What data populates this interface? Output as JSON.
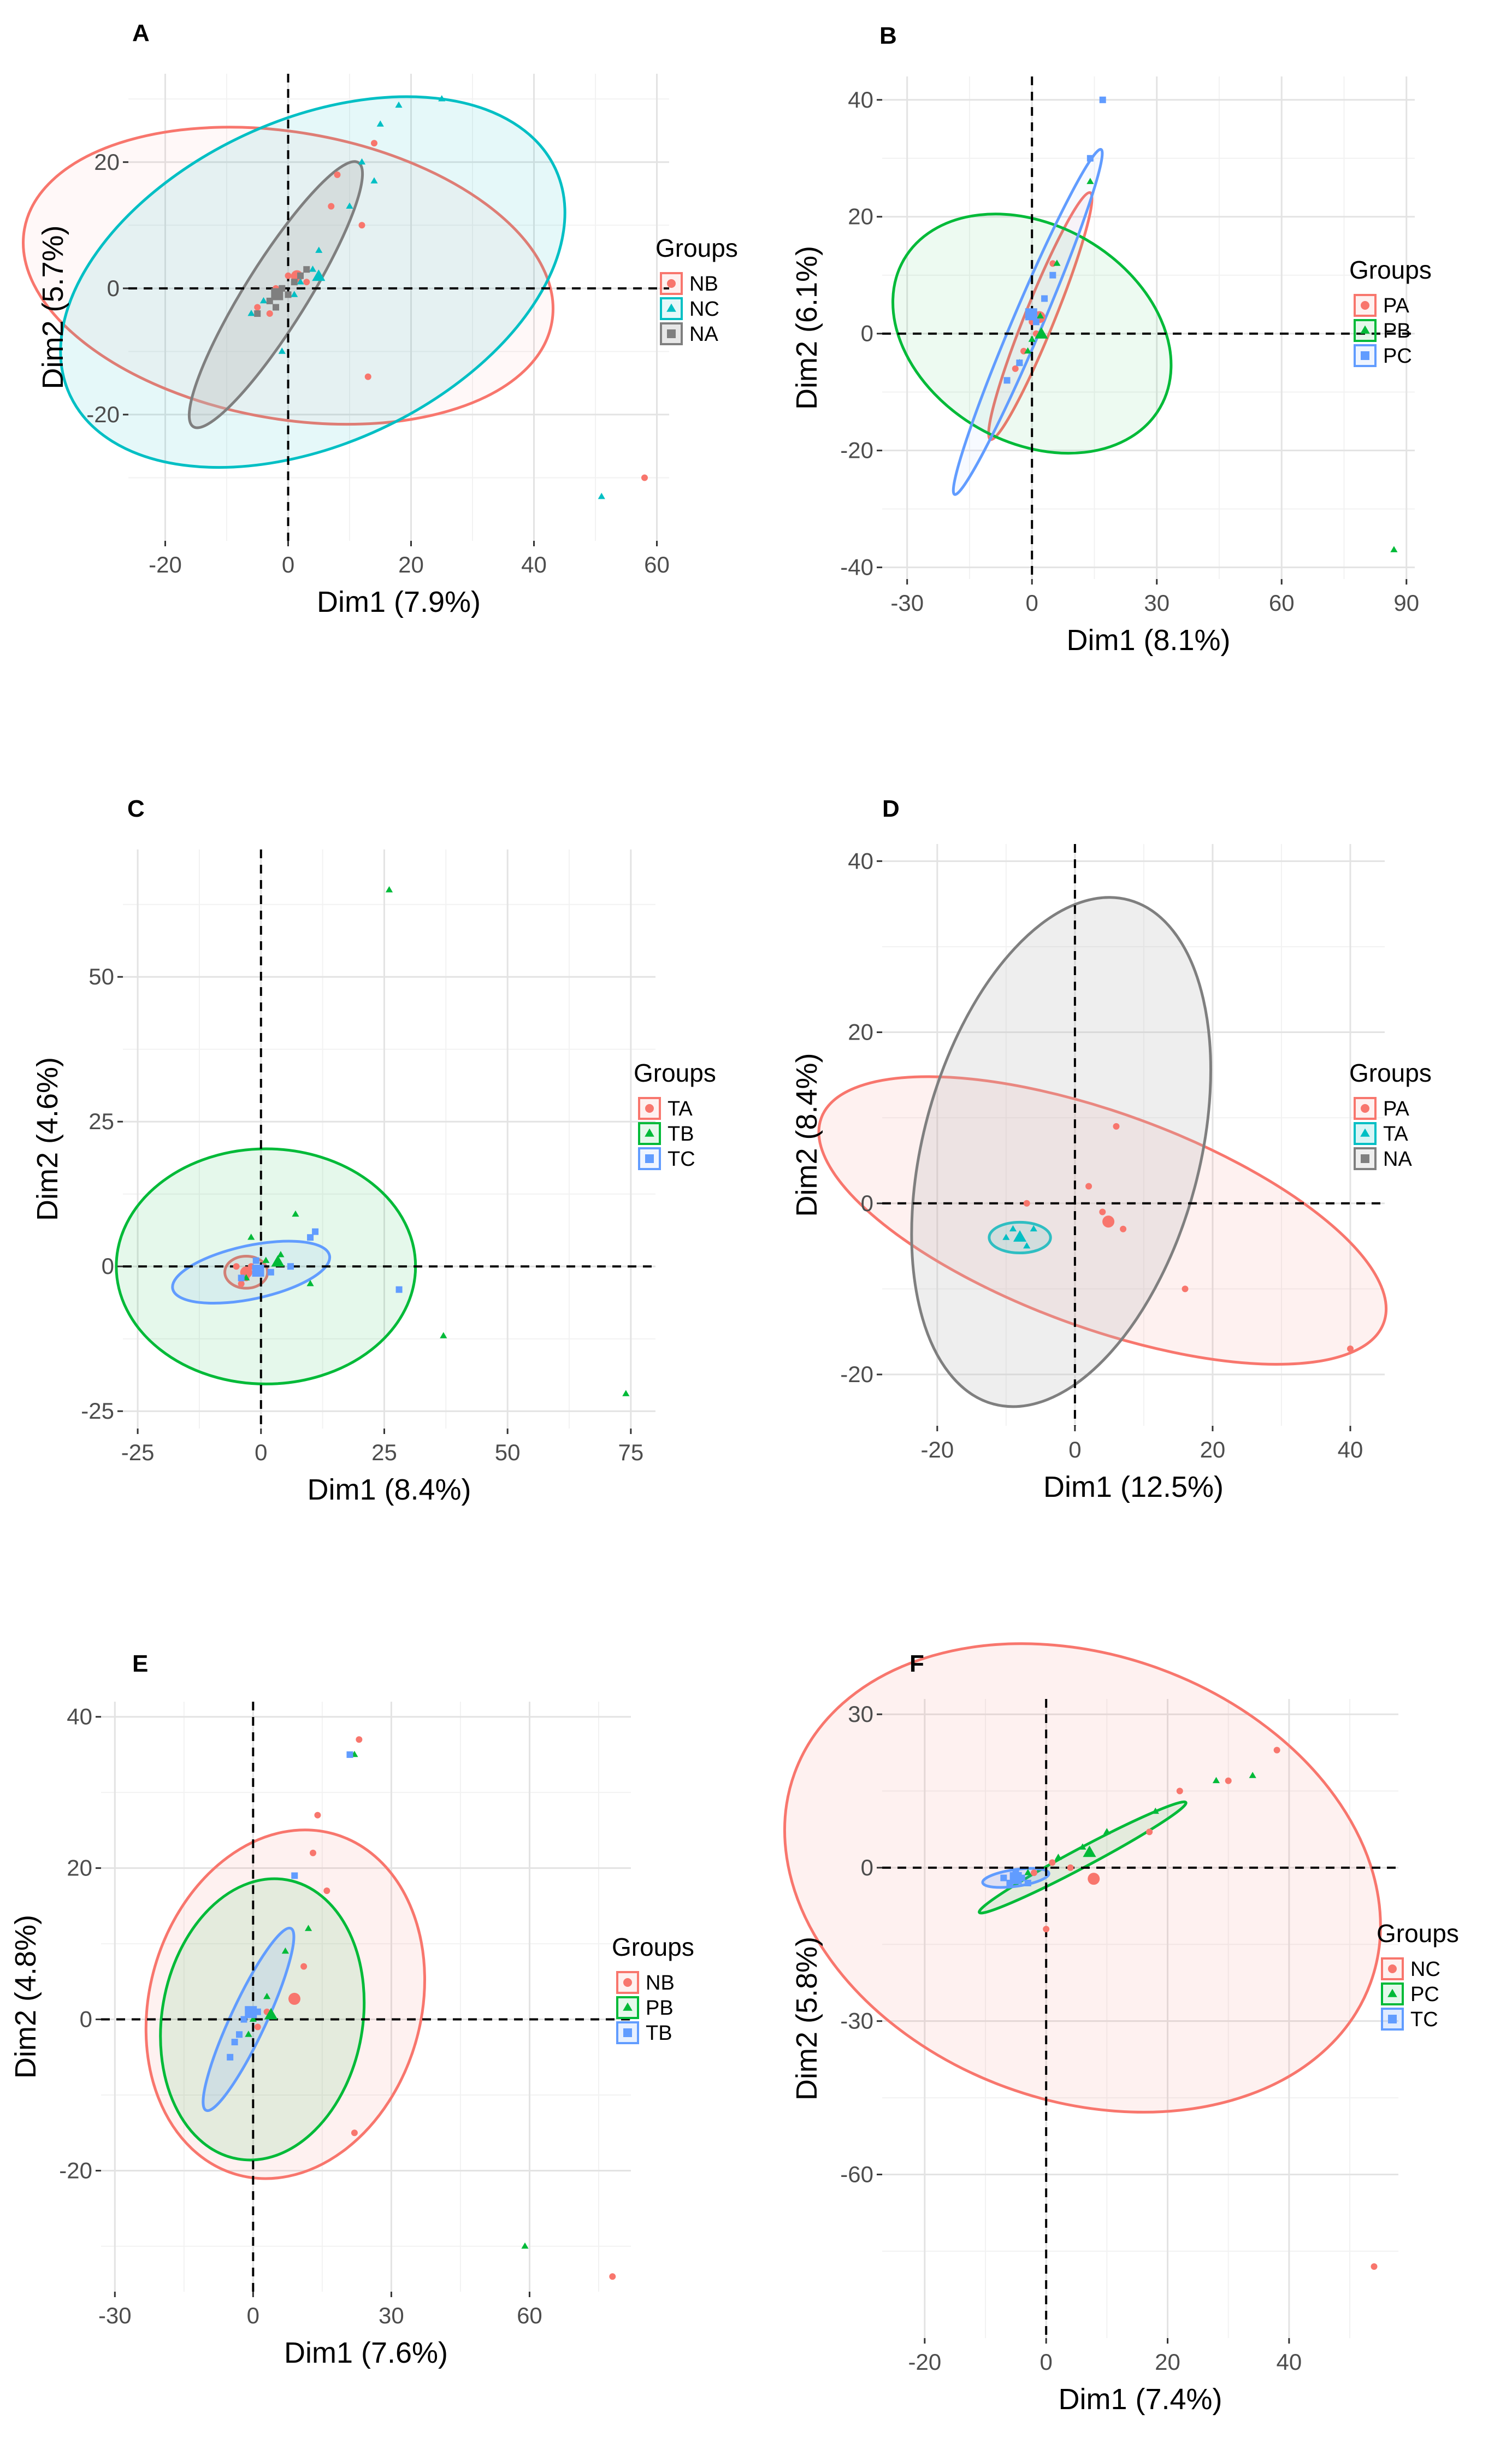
{
  "chart_data": [
    {
      "type": "scatter",
      "panel_label": "A",
      "xlabel": "Dim1 (7.9%)",
      "ylabel": "Dim2 (5.7%)",
      "xlim": [
        -26,
        62
      ],
      "ylim": [
        -40,
        34
      ],
      "xticks": [
        -20,
        0,
        20,
        40,
        60
      ],
      "yticks": [
        -20,
        0,
        20
      ],
      "legend": {
        "title": "Groups",
        "placement": "right",
        "entries": [
          "NB",
          "NC",
          "NA"
        ]
      },
      "series": [
        {
          "name": "NB",
          "color": "#F8766D",
          "marker": "circle",
          "ellipse": {
            "cx": 0,
            "cy": 2,
            "rx": 43,
            "ry": 23,
            "angle": -10,
            "fill": "#F8766D",
            "fill_opacity": 0.05
          },
          "points": [
            [
              14,
              23
            ],
            [
              8,
              18
            ],
            [
              12,
              10
            ],
            [
              7,
              13
            ],
            [
              13,
              -14
            ],
            [
              58,
              -30
            ],
            [
              -2,
              0
            ],
            [
              -5,
              -3
            ],
            [
              3,
              1
            ],
            [
              0,
              2
            ],
            [
              -3,
              -4
            ]
          ]
        },
        {
          "name": "NC",
          "color": "#00BFC4",
          "marker": "triangle",
          "ellipse": {
            "cx": 4,
            "cy": 1,
            "rx": 43,
            "ry": 26,
            "angle": 25,
            "fill": "#00BFC4",
            "fill_opacity": 0.1
          },
          "points": [
            [
              25,
              30
            ],
            [
              18,
              29
            ],
            [
              15,
              26
            ],
            [
              12,
              20
            ],
            [
              14,
              17
            ],
            [
              10,
              13
            ],
            [
              5,
              6
            ],
            [
              4,
              3
            ],
            [
              -1,
              -10
            ],
            [
              51,
              -33
            ],
            [
              -4,
              -2
            ],
            [
              2,
              1
            ],
            [
              -6,
              -4
            ],
            [
              1,
              -1
            ]
          ]
        },
        {
          "name": "NA",
          "color": "#7F7F7F",
          "marker": "square",
          "ellipse": {
            "cx": -2,
            "cy": -1,
            "rx": 25,
            "ry": 5,
            "angle": 58,
            "fill": "#BBBBBB",
            "fill_opacity": 0.35
          },
          "points": [
            [
              -3,
              -2
            ],
            [
              -1,
              0
            ],
            [
              1,
              1
            ],
            [
              -5,
              -4
            ],
            [
              2,
              2
            ],
            [
              -2,
              -3
            ],
            [
              0,
              -1
            ],
            [
              3,
              3
            ]
          ]
        }
      ]
    },
    {
      "type": "scatter",
      "panel_label": "B",
      "xlabel": "Dim1 (8.1%)",
      "ylabel": "Dim2 (6.1%)",
      "xlim": [
        -36,
        92
      ],
      "ylim": [
        -42,
        44
      ],
      "xticks": [
        -30,
        0,
        30,
        60,
        90
      ],
      "yticks": [
        -40,
        -20,
        0,
        20,
        40
      ],
      "legend": {
        "title": "Groups",
        "placement": "right",
        "entries": [
          "PA",
          "PB",
          "PC"
        ]
      },
      "series": [
        {
          "name": "PA",
          "color": "#F8766D",
          "marker": "circle",
          "ellipse": {
            "cx": 2,
            "cy": 3,
            "rx": 27,
            "ry": 3,
            "angle": 68,
            "fill": "#F8766D",
            "fill_opacity": 0.05
          },
          "points": [
            [
              0,
              2
            ],
            [
              3,
              6
            ],
            [
              5,
              12
            ],
            [
              -2,
              -3
            ],
            [
              1,
              0
            ],
            [
              -4,
              -6
            ]
          ]
        },
        {
          "name": "PB",
          "color": "#00BA38",
          "marker": "triangle",
          "ellipse": {
            "cx": 0,
            "cy": 0,
            "rx": 30,
            "ry": 22,
            "angle": -30,
            "fill": "#00BA38",
            "fill_opacity": 0.07
          },
          "points": [
            [
              14,
              26
            ],
            [
              6,
              12
            ],
            [
              -1,
              -3
            ],
            [
              87,
              -37
            ],
            [
              2,
              3
            ],
            [
              -3,
              -5
            ],
            [
              0,
              -1
            ]
          ]
        },
        {
          "name": "PC",
          "color": "#619CFF",
          "marker": "square",
          "ellipse": {
            "cx": -1,
            "cy": 2,
            "rx": 38,
            "ry": 3,
            "angle": 67,
            "fill": "#619CFF",
            "fill_opacity": 0.05
          },
          "points": [
            [
              17,
              40
            ],
            [
              14,
              30
            ],
            [
              5,
              10
            ],
            [
              -3,
              -5
            ],
            [
              1,
              2
            ],
            [
              -6,
              -8
            ],
            [
              3,
              6
            ]
          ]
        }
      ]
    },
    {
      "type": "scatter",
      "panel_label": "C",
      "xlabel": "Dim1 (8.4%)",
      "ylabel": "Dim2 (4.6%)",
      "xlim": [
        -28,
        80
      ],
      "ylim": [
        -28,
        72
      ],
      "xticks": [
        -25,
        0,
        25,
        50,
        75
      ],
      "yticks": [
        -25,
        0,
        25,
        50
      ],
      "legend": {
        "title": "Groups",
        "placement": "right",
        "entries": [
          "TA",
          "TB",
          "TC"
        ]
      },
      "series": [
        {
          "name": "TA",
          "color": "#F8766D",
          "marker": "circle",
          "ellipse": {
            "cx": -3,
            "cy": -1,
            "rx": 4,
            "ry": 3,
            "angle": 0,
            "fill": "#F8766D",
            "fill_opacity": 0.1
          },
          "points": [
            [
              -3,
              -2
            ],
            [
              -2,
              0
            ],
            [
              -4,
              -3
            ],
            [
              -1,
              -1
            ],
            [
              -5,
              0
            ]
          ]
        },
        {
          "name": "TB",
          "color": "#00BA38",
          "marker": "triangle",
          "ellipse": {
            "cx": 1,
            "cy": 0,
            "rx": 28,
            "ry": 22,
            "angle": 0,
            "fill": "#00BA38",
            "fill_opacity": 0.1
          },
          "points": [
            [
              26,
              65
            ],
            [
              37,
              -12
            ],
            [
              74,
              -22
            ],
            [
              7,
              9
            ],
            [
              1,
              1
            ],
            [
              -2,
              5
            ],
            [
              10,
              -3
            ],
            [
              4,
              2
            ],
            [
              -3,
              -2
            ]
          ]
        },
        {
          "name": "TC",
          "color": "#619CFF",
          "marker": "square",
          "ellipse": {
            "cx": -2,
            "cy": -1,
            "rx": 15,
            "ry": 5,
            "angle": 12,
            "fill": "#619CFF",
            "fill_opacity": 0.1
          },
          "points": [
            [
              11,
              6
            ],
            [
              28,
              -4
            ],
            [
              -1,
              1
            ],
            [
              -4,
              -2
            ],
            [
              2,
              -1
            ],
            [
              6,
              0
            ],
            [
              10,
              5
            ]
          ]
        }
      ]
    },
    {
      "type": "scatter",
      "panel_label": "D",
      "xlabel": "Dim1 (12.5%)",
      "ylabel": "Dim2 (8.4%)",
      "xlim": [
        -28,
        45
      ],
      "ylim": [
        -26,
        42
      ],
      "xticks": [
        -20,
        0,
        20,
        40
      ],
      "yticks": [
        -20,
        0,
        20,
        40
      ],
      "legend": {
        "title": "Groups",
        "placement": "right",
        "entries": [
          "PA",
          "TA",
          "NA"
        ]
      },
      "series": [
        {
          "name": "PA",
          "color": "#F8766D",
          "marker": "circle",
          "ellipse": {
            "cx": 4,
            "cy": -2,
            "rx": 39,
            "ry": 14,
            "angle": -20,
            "fill": "#F8766D",
            "fill_opacity": 0.1
          },
          "points": [
            [
              -7,
              0
            ],
            [
              7,
              -3
            ],
            [
              16,
              -10
            ],
            [
              6,
              9
            ],
            [
              2,
              2
            ],
            [
              40,
              -17
            ],
            [
              4,
              -1
            ]
          ]
        },
        {
          "name": "TA",
          "color": "#00BFC4",
          "marker": "triangle",
          "ellipse": {
            "cx": -8,
            "cy": -4,
            "rx": 4,
            "ry": 2,
            "angle": 0,
            "fill": "#00BFC4",
            "fill_opacity": 0.15
          },
          "points": [
            [
              -8,
              -4
            ],
            [
              -9,
              -3
            ],
            [
              -7,
              -5
            ],
            [
              -10,
              -4
            ],
            [
              -6,
              -3
            ]
          ]
        },
        {
          "name": "NA",
          "color": "#7F7F7F",
          "marker": "square",
          "ellipse": {
            "cx": -2,
            "cy": 6,
            "rx": 34,
            "ry": 18,
            "angle": 75,
            "fill": "#BBBBBB",
            "fill_opacity": 0.25
          },
          "points": []
        }
      ]
    },
    {
      "type": "scatter",
      "panel_label": "E",
      "xlabel": "Dim1 (7.6%)",
      "ylabel": "Dim2 (4.8%)",
      "xlim": [
        -33,
        82
      ],
      "ylim": [
        -36,
        42
      ],
      "xticks": [
        -30,
        0,
        30,
        60
      ],
      "yticks": [
        -20,
        0,
        20,
        40
      ],
      "legend": {
        "title": "Groups",
        "placement": "right",
        "entries": [
          "NB",
          "PB",
          "TB"
        ]
      },
      "series": [
        {
          "name": "NB",
          "color": "#F8766D",
          "marker": "circle",
          "ellipse": {
            "cx": 7,
            "cy": 2,
            "rx": 30,
            "ry": 23,
            "angle": 74,
            "fill": "#F8766D",
            "fill_opacity": 0.1
          },
          "points": [
            [
              23,
              37
            ],
            [
              14,
              27
            ],
            [
              13,
              22
            ],
            [
              16,
              17
            ],
            [
              11,
              7
            ],
            [
              22,
              -15
            ],
            [
              78,
              -34
            ],
            [
              3,
              1
            ],
            [
              1,
              -1
            ]
          ]
        },
        {
          "name": "PB",
          "color": "#00BA38",
          "marker": "triangle",
          "ellipse": {
            "cx": 2,
            "cy": 0,
            "rx": 24,
            "ry": 17,
            "angle": 80,
            "fill": "#00BA38",
            "fill_opacity": 0.1
          },
          "points": [
            [
              22,
              35
            ],
            [
              12,
              12
            ],
            [
              7,
              9
            ],
            [
              59,
              -30
            ],
            [
              3,
              3
            ],
            [
              -1,
              -2
            ],
            [
              0,
              0
            ]
          ]
        },
        {
          "name": "TB",
          "color": "#619CFF",
          "marker": "square",
          "ellipse": {
            "cx": -1,
            "cy": 0,
            "rx": 17,
            "ry": 3,
            "angle": 65,
            "fill": "#619CFF",
            "fill_opacity": 0.15
          },
          "points": [
            [
              21,
              35
            ],
            [
              9,
              19
            ],
            [
              -4,
              -3
            ],
            [
              -2,
              0
            ],
            [
              -5,
              -5
            ],
            [
              1,
              1
            ],
            [
              -3,
              -2
            ]
          ]
        }
      ]
    },
    {
      "type": "scatter",
      "panel_label": "F",
      "xlabel": "Dim1 (7.4%)",
      "ylabel": "Dim2 (5.8%)",
      "xlim": [
        -27,
        58
      ],
      "ylim": [
        -92,
        33
      ],
      "xticks": [
        -20,
        0,
        20,
        40
      ],
      "yticks": [
        -60,
        -30,
        0,
        30
      ],
      "legend": {
        "title": "Groups",
        "placement": "right",
        "entries": [
          "NC",
          "PC",
          "TC"
        ]
      },
      "series": [
        {
          "name": "NC",
          "color": "#F8766D",
          "marker": "circle",
          "ellipse": {
            "cx": 6,
            "cy": -2,
            "rx": 55,
            "ry": 40,
            "angle": -20,
            "fill": "#F8766D",
            "fill_opacity": 0.1
          },
          "points": [
            [
              38,
              23
            ],
            [
              30,
              17
            ],
            [
              22,
              15
            ],
            [
              17,
              7
            ],
            [
              4,
              0
            ],
            [
              0,
              -12
            ],
            [
              54,
              -78
            ],
            [
              -2,
              -1
            ],
            [
              1,
              1
            ]
          ]
        },
        {
          "name": "PC",
          "color": "#00BA38",
          "marker": "triangle",
          "ellipse": {
            "cx": 6,
            "cy": 2,
            "rx": 21,
            "ry": 1.7,
            "angle": 28,
            "fill": "#00BA38",
            "fill_opacity": 0.1
          },
          "points": [
            [
              34,
              18
            ],
            [
              28,
              17
            ],
            [
              18,
              11
            ],
            [
              10,
              7
            ],
            [
              2,
              2
            ],
            [
              -3,
              -1
            ],
            [
              6,
              4
            ]
          ]
        },
        {
          "name": "TC",
          "color": "#619CFF",
          "marker": "square",
          "ellipse": {
            "cx": -5,
            "cy": -2,
            "rx": 6,
            "ry": 1.5,
            "angle": 8,
            "fill": "#619CFF",
            "fill_opacity": 0.2
          },
          "points": [
            [
              -6,
              -3
            ],
            [
              -4,
              -2
            ],
            [
              -5,
              -1
            ],
            [
              -3,
              -3
            ],
            [
              -7,
              -2
            ]
          ]
        }
      ]
    }
  ]
}
